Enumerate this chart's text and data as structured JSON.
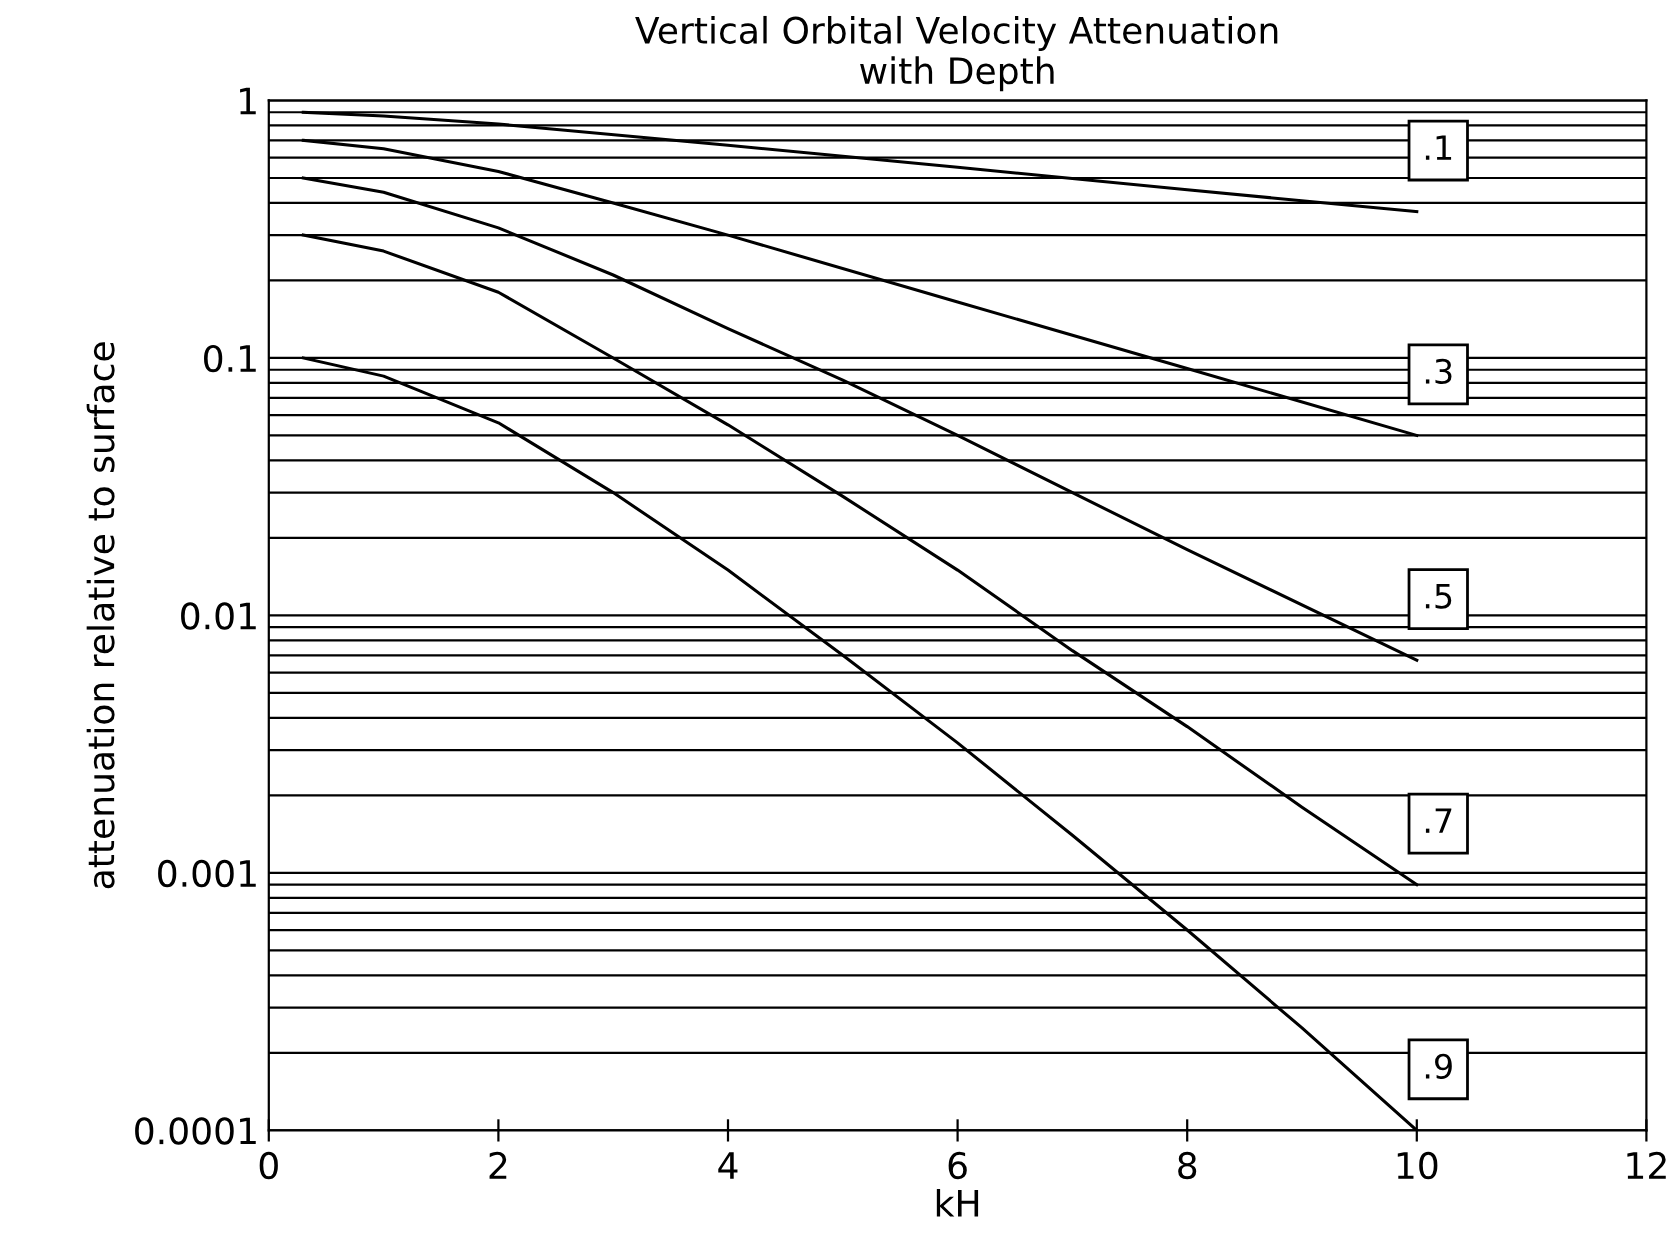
{
  "chart_data": {
    "type": "line",
    "title": "Vertical Orbital Velocity Attenuation\nwith Depth",
    "xlabel": "kH",
    "ylabel": "attenuation relative to surface",
    "log": "y",
    "xlim": [
      0,
      12
    ],
    "ylim": [
      0.0001,
      1
    ],
    "xticks": [
      0,
      2,
      4,
      6,
      8,
      10,
      12
    ],
    "yticks": [
      0.0001,
      {
        "value": 0.0002,
        "label": null
      },
      {
        "value": 0.0003,
        "label": null
      },
      {
        "value": 0.0004,
        "label": null
      },
      {
        "value": 0.0005,
        "label": null
      },
      {
        "value": 0.0006,
        "label": null
      },
      {
        "value": 0.0007,
        "label": null
      },
      {
        "value": 0.0008,
        "label": null
      },
      {
        "value": 0.0009,
        "label": null
      },
      0.001,
      {
        "value": 0.002,
        "label": null
      },
      {
        "value": 0.003,
        "label": null
      },
      {
        "value": 0.004,
        "label": null
      },
      {
        "value": 0.005,
        "label": null
      },
      {
        "value": 0.006,
        "label": null
      },
      {
        "value": 0.007,
        "label": null
      },
      {
        "value": 0.008,
        "label": null
      },
      {
        "value": 0.009,
        "label": null
      },
      0.01,
      {
        "value": 0.02,
        "label": null
      },
      {
        "value": 0.03,
        "label": null
      },
      {
        "value": 0.04,
        "label": null
      },
      {
        "value": 0.05,
        "label": null
      },
      {
        "value": 0.06,
        "label": null
      },
      {
        "value": 0.07,
        "label": null
      },
      {
        "value": 0.08,
        "label": null
      },
      {
        "value": 0.09,
        "label": null
      },
      0.1,
      {
        "value": 0.2,
        "label": null
      },
      {
        "value": 0.3,
        "label": null
      },
      {
        "value": 0.4,
        "label": null
      },
      {
        "value": 0.5,
        "label": null
      },
      {
        "value": 0.6,
        "label": null
      },
      {
        "value": 0.7,
        "label": null
      },
      {
        "value": 0.8,
        "label": null
      },
      {
        "value": 0.9,
        "label": null
      },
      1
    ],
    "grid": "y",
    "legend": false,
    "marker": "none",
    "line_style": "solid",
    "series": [
      {
        "name": ".1",
        "color": "#000000",
        "x": [
          0.3,
          1,
          2,
          4,
          6,
          8,
          10
        ],
        "values": [
          0.9,
          0.87,
          0.81,
          0.67,
          0.55,
          0.45,
          0.37
        ]
      },
      {
        "name": ".3",
        "color": "#000000",
        "x": [
          0.3,
          1,
          2,
          3,
          4,
          6,
          8,
          10
        ],
        "values": [
          0.7,
          0.65,
          0.53,
          0.4,
          0.3,
          0.165,
          0.091,
          0.05
        ]
      },
      {
        "name": ".5",
        "color": "#000000",
        "x": [
          0.3,
          1,
          2,
          3,
          4,
          5,
          6,
          8,
          10
        ],
        "values": [
          0.5,
          0.44,
          0.32,
          0.21,
          0.13,
          0.082,
          0.05,
          0.018,
          0.0067
        ]
      },
      {
        "name": ".7",
        "color": "#000000",
        "x": [
          0.3,
          1,
          2,
          3,
          4,
          5,
          6,
          7,
          8,
          9,
          10
        ],
        "values": [
          0.3,
          0.26,
          0.18,
          0.1,
          0.055,
          0.029,
          0.015,
          0.0073,
          0.0037,
          0.0018,
          0.0009
        ]
      },
      {
        "name": ".9",
        "color": "#000000",
        "x": [
          0.3,
          1,
          2,
          3,
          4,
          5,
          6,
          7,
          8,
          9,
          10
        ],
        "values": [
          0.1,
          0.085,
          0.056,
          0.03,
          0.015,
          0.007,
          0.0032,
          0.0014,
          0.0006,
          0.00025,
          0.0001
        ]
      }
    ]
  }
}
